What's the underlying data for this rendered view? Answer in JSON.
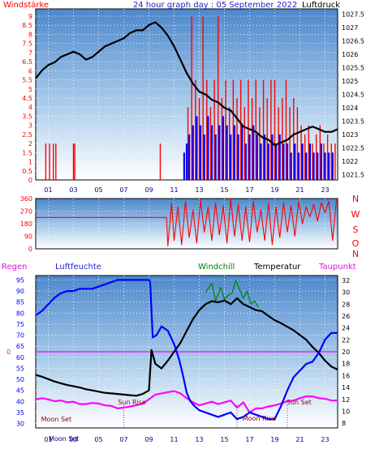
{
  "chart_data": [
    {
      "type": "line",
      "panel": "wind-pressure",
      "title": "24 hour graph day : 05 September 2022",
      "y_left_label": "Windstärke",
      "y_right_label": "Luftdruck",
      "x_ticks": [
        "01",
        "03",
        "05",
        "07",
        "09",
        "11",
        "13",
        "15",
        "17",
        "19",
        "21",
        "23"
      ],
      "x_range": [
        0,
        24
      ],
      "y_left_ticks": [
        "0",
        "0.5",
        "1",
        "1.5",
        "2",
        "2.5",
        "3",
        "3.5",
        "4",
        "4.5",
        "5",
        "5.5",
        "6",
        "6.5",
        "7",
        "7.5",
        "8",
        "8.5",
        "9"
      ],
      "y_left_range": [
        0,
        9.4
      ],
      "y_right_ticks": [
        "1021.5",
        "1022",
        "1022.5",
        "1023",
        "1023.5",
        "1024",
        "1024.5",
        "1025",
        "1025.5",
        "1026",
        "1026.5",
        "1027",
        "1027.5"
      ],
      "y_right_range": [
        1021.3,
        1027.7
      ],
      "grid": true,
      "series": [
        {
          "color": "#000000",
          "axis": "right",
          "x": [
            0,
            0.5,
            1,
            1.5,
            2,
            2.5,
            3,
            3.5,
            4,
            4.5,
            5,
            5.5,
            6,
            6.5,
            7,
            7.5,
            8,
            8.5,
            9,
            9.5,
            10,
            10.5,
            11,
            11.5,
            12,
            12.5,
            13,
            13.5,
            14,
            14.5,
            15,
            15.5,
            16,
            16.5,
            17,
            17.5,
            18,
            18.5,
            19,
            19.5,
            20,
            20.5,
            21,
            21.5,
            22,
            22.5,
            23,
            23.5,
            24
          ],
          "values": [
            1025.1,
            1025.4,
            1025.6,
            1025.7,
            1025.9,
            1026.0,
            1026.1,
            1026.0,
            1025.8,
            1025.9,
            1026.1,
            1026.3,
            1026.4,
            1026.5,
            1026.6,
            1026.8,
            1026.9,
            1026.9,
            1027.1,
            1027.2,
            1027.0,
            1026.7,
            1026.3,
            1025.8,
            1025.3,
            1024.9,
            1024.6,
            1024.5,
            1024.3,
            1024.2,
            1024.0,
            1023.9,
            1023.6,
            1023.3,
            1023.2,
            1023.1,
            1022.9,
            1022.8,
            1022.6,
            1022.7,
            1022.8,
            1023.0,
            1023.1,
            1023.2,
            1023.3,
            1023.2,
            1023.1,
            1023.1,
            1023.2
          ]
        },
        {
          "color": "#ff0000",
          "axis": "left",
          "type": "spikes",
          "x": [
            0.8,
            1.1,
            1.4,
            1.6,
            3.0,
            3.1,
            9.9,
            12.1,
            12.4,
            12.7,
            13.0,
            13.3,
            13.6,
            13.9,
            14.2,
            14.5,
            14.8,
            15.1,
            15.4,
            15.7,
            16.0,
            16.3,
            16.6,
            16.9,
            17.2,
            17.5,
            17.8,
            18.1,
            18.4,
            18.7,
            19.0,
            19.3,
            19.6,
            19.9,
            20.2,
            20.5,
            20.8,
            21.1,
            21.4,
            21.7,
            22.0,
            22.3,
            22.6,
            22.9,
            23.2,
            23.5,
            23.8
          ],
          "values": [
            2.0,
            2.0,
            2.0,
            2.0,
            2.0,
            2.0,
            2.0,
            4.0,
            9.0,
            5.5,
            4.5,
            9.0,
            5.5,
            4.0,
            5.5,
            9.0,
            4.5,
            5.5,
            4.0,
            5.5,
            4.5,
            5.5,
            4.0,
            5.5,
            4.5,
            5.5,
            4.0,
            5.5,
            4.5,
            5.5,
            5.5,
            4.0,
            4.5,
            5.5,
            4.0,
            4.5,
            4.0,
            3.0,
            2.5,
            3.0,
            2.0,
            2.5,
            3.0,
            2.0,
            2.5,
            2.0,
            2.0
          ]
        },
        {
          "color": "#0000ff",
          "axis": "left",
          "type": "spikes",
          "x": [
            11.8,
            12.0,
            12.2,
            12.5,
            12.8,
            13.1,
            13.4,
            13.7,
            14.0,
            14.3,
            14.6,
            14.9,
            15.2,
            15.5,
            15.8,
            16.1,
            16.4,
            16.7,
            17.0,
            17.3,
            17.6,
            17.9,
            18.2,
            18.5,
            18.8,
            19.1,
            19.4,
            19.7,
            20.0,
            20.3,
            20.6,
            20.9,
            21.2,
            21.5,
            21.8,
            22.1,
            22.4,
            22.7,
            23.0,
            23.3,
            23.6
          ],
          "values": [
            1.5,
            2.0,
            2.5,
            3.0,
            3.5,
            3.0,
            2.5,
            3.5,
            3.0,
            2.5,
            3.0,
            3.5,
            3.0,
            2.5,
            3.0,
            2.5,
            3.0,
            2.0,
            2.5,
            3.0,
            2.5,
            2.0,
            2.5,
            2.0,
            2.5,
            2.0,
            2.5,
            2.0,
            2.0,
            1.5,
            2.0,
            1.5,
            2.0,
            1.5,
            2.0,
            1.5,
            1.5,
            2.0,
            1.5,
            1.5,
            1.5
          ]
        }
      ]
    },
    {
      "type": "line",
      "panel": "wind-direction",
      "y_ticks": [
        "0",
        "90",
        "180",
        "270",
        "360"
      ],
      "y_range": [
        0,
        360
      ],
      "x_range": [
        0,
        24
      ],
      "right_labels": [
        "N",
        "W",
        "S",
        "O",
        "N"
      ],
      "series": [
        {
          "color": "#ff0000",
          "x": [
            0,
            10.4,
            10.5,
            10.8,
            11.0,
            11.3,
            11.6,
            11.9,
            12.2,
            12.5,
            12.8,
            13.1,
            13.4,
            13.7,
            14.0,
            14.3,
            14.6,
            14.9,
            15.2,
            15.5,
            15.8,
            16.1,
            16.4,
            16.7,
            17.0,
            17.3,
            17.6,
            17.9,
            18.2,
            18.5,
            18.8,
            19.1,
            19.4,
            19.7,
            20.0,
            20.3,
            20.6,
            20.9,
            21.2,
            21.5,
            21.8,
            22.1,
            22.4,
            22.7,
            23.0,
            23.3,
            23.6,
            23.9
          ],
          "values": [
            225,
            225,
            20,
            330,
            60,
            300,
            30,
            340,
            80,
            280,
            40,
            350,
            120,
            300,
            60,
            330,
            100,
            310,
            40,
            360,
            90,
            320,
            60,
            300,
            50,
            340,
            120,
            280,
            60,
            330,
            30,
            300,
            80,
            330,
            120,
            310,
            90,
            340,
            180,
            300,
            230,
            320,
            200,
            330,
            260,
            340,
            60,
            350
          ]
        }
      ]
    },
    {
      "type": "line",
      "panel": "humidity-temperature",
      "legend": [
        "Regen",
        "Luftfeuchte",
        "Windchill",
        "Temperatur",
        "Taupunkt"
      ],
      "y_left_ticks": [
        "30",
        "35",
        "40",
        "45",
        "50",
        "55",
        "60",
        "65",
        "70",
        "75",
        "80",
        "85",
        "90",
        "95"
      ],
      "y_left_range": [
        28,
        97
      ],
      "y_right_ticks": [
        "8",
        "10",
        "12",
        "14",
        "16",
        "18",
        "20",
        "22",
        "24",
        "26",
        "28",
        "30",
        "32"
      ],
      "y_right_range": [
        7.2,
        32.8
      ],
      "regen_ticks": [
        "0"
      ],
      "x_ticks": [
        "01",
        "03",
        "05",
        "07",
        "09",
        "11",
        "13",
        "15",
        "17",
        "19",
        "21",
        "23"
      ],
      "x_range": [
        0,
        24
      ],
      "annotations": [
        {
          "text": "Sun Rise",
          "x": 6.4
        },
        {
          "text": "Sun Set",
          "x": 19.8
        },
        {
          "text": "Moon Set",
          "x": 0.3
        },
        {
          "text": "Moon Rise",
          "x": 16.3
        },
        {
          "text": "Moon Set",
          "x": 0.9
        }
      ],
      "vlines_x": [
        7.0,
        16.0,
        20.0
      ],
      "series": [
        {
          "name": "Luftfeuchte",
          "color": "#0000ff",
          "axis": "left",
          "x": [
            0,
            0.5,
            1,
            1.5,
            2,
            2.5,
            3,
            3.5,
            4,
            4.5,
            5,
            5.5,
            6,
            6.5,
            7,
            7.5,
            8,
            8.5,
            9,
            9.1,
            9.3,
            9.6,
            10,
            10.5,
            11,
            11.4,
            11.7,
            12,
            12.3,
            12.6,
            13,
            13.5,
            14,
            14.5,
            15,
            15.5,
            16,
            16.5,
            17,
            17.5,
            18,
            18.5,
            19,
            19.5,
            20,
            20.5,
            21,
            21.5,
            22,
            22.5,
            23,
            23.5,
            24
          ],
          "values": [
            79,
            81,
            84,
            87,
            89,
            90,
            90,
            91,
            91,
            91,
            92,
            93,
            94,
            95,
            95,
            95,
            95,
            95,
            95,
            94,
            69,
            70,
            74,
            72,
            66,
            59,
            52,
            44,
            40,
            38,
            36,
            35,
            34,
            33,
            34,
            35,
            32,
            33,
            35,
            34,
            33,
            32,
            32,
            38,
            45,
            51,
            54,
            57,
            58,
            62,
            68,
            71,
            71
          ]
        },
        {
          "name": "Temperatur",
          "color": "#000000",
          "axis": "right",
          "x": [
            0,
            0.5,
            1,
            1.5,
            2,
            2.5,
            3,
            3.5,
            4,
            4.5,
            5,
            5.5,
            6,
            6.5,
            7,
            7.5,
            8,
            8.5,
            9,
            9.2,
            9.5,
            10,
            10.5,
            11,
            11.5,
            12,
            12.5,
            13,
            13.5,
            14,
            14.5,
            15,
            15.5,
            16,
            16.5,
            17,
            17.5,
            18,
            18.5,
            19,
            19.5,
            20,
            20.5,
            21,
            21.5,
            22,
            22.5,
            23,
            23.5,
            24
          ],
          "values": [
            16.1,
            15.8,
            15.4,
            15.0,
            14.7,
            14.4,
            14.2,
            14.0,
            13.7,
            13.5,
            13.3,
            13.1,
            13.0,
            12.9,
            12.8,
            12.7,
            12.6,
            12.9,
            13.5,
            20.3,
            18.0,
            17.2,
            18.5,
            20.0,
            21.5,
            23.5,
            25.5,
            27.0,
            28.0,
            28.5,
            28.3,
            28.6,
            28.0,
            29.0,
            28.0,
            27.5,
            27.0,
            26.8,
            26.0,
            25.3,
            24.8,
            24.2,
            23.6,
            22.8,
            22.0,
            20.8,
            19.8,
            18.5,
            17.5,
            17.0
          ]
        },
        {
          "name": "Windchill",
          "color": "#008000",
          "axis": "right",
          "x": [
            13.5,
            14.0,
            14.3,
            14.7,
            15.0,
            15.3,
            15.6,
            15.9,
            16.2,
            16.5,
            16.8,
            17.1,
            17.4,
            17.7
          ],
          "values": [
            30.0,
            31.5,
            28.5,
            30.8,
            28.8,
            29.5,
            29.8,
            32.0,
            30.5,
            29.0,
            30.2,
            28.0,
            28.5,
            27.5
          ]
        },
        {
          "name": "Taupunkt",
          "color": "#ff00ff",
          "axis": "right",
          "x": [
            0,
            0.5,
            1,
            1.5,
            2,
            2.5,
            3,
            3.5,
            4,
            4.5,
            5,
            5.5,
            6,
            6.5,
            7,
            7.5,
            8,
            8.5,
            9,
            9.5,
            10,
            10.5,
            11,
            11.5,
            12,
            12.5,
            13,
            13.5,
            14,
            14.5,
            15,
            15.5,
            16,
            16.5,
            17,
            17.5,
            18,
            18.5,
            19,
            19.5,
            20,
            20.5,
            21,
            21.5,
            22,
            22.5,
            23,
            23.5,
            24
          ],
          "values": [
            12.0,
            12.2,
            12.0,
            11.7,
            11.8,
            11.5,
            11.6,
            11.2,
            11.2,
            11.4,
            11.3,
            11.0,
            10.9,
            10.5,
            10.6,
            10.8,
            11.0,
            11.3,
            12.0,
            12.8,
            13.0,
            13.2,
            13.4,
            13.0,
            12.2,
            11.5,
            11.0,
            11.3,
            11.6,
            11.2,
            11.5,
            11.8,
            10.6,
            11.5,
            9.8,
            10.5,
            10.5,
            10.8,
            11.0,
            11.3,
            11.7,
            11.8,
            12.2,
            12.5,
            12.5,
            12.2,
            12.1,
            11.8,
            11.8
          ]
        },
        {
          "name": "Regen",
          "color": "#ff00ff",
          "axis": "regen",
          "x": [
            0,
            24
          ],
          "values": [
            0,
            0
          ]
        }
      ]
    }
  ]
}
